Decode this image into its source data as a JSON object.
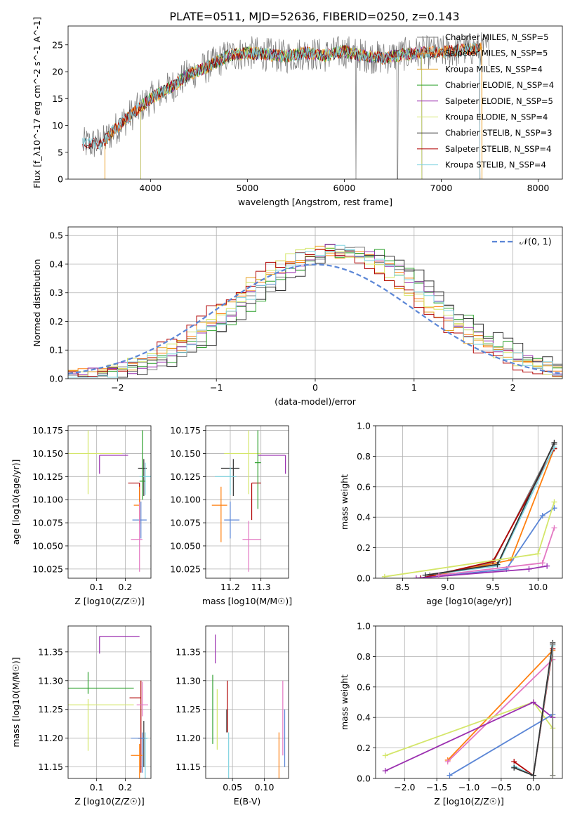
{
  "figure_title": "PLATE=0511, MJD=52636, FIBERID=0250, z=0.143",
  "colors": {
    "chabrier_miles": "#7f7f7f",
    "salpeter_miles": "#ff7f0e",
    "kroupa_miles": "#e6a020",
    "chabrier_elodie": "#2ca02c",
    "salpeter_elodie": "#9b30b0",
    "kroupa_elodie": "#d4e66a",
    "chabrier_stelib": "#333333",
    "salpeter_stelib": "#b00000",
    "kroupa_stelib": "#7fd3e0",
    "gauss": "#5b86d6",
    "pink": "#e377c2",
    "blue": "#5b86d6"
  },
  "chart_data": [
    {
      "id": "spectrum",
      "type": "line",
      "xlabel": "wavelength [Angstrom, rest frame]",
      "ylabel": "Flux [f_λ10^-17 erg cm^-2 s^-1 A^-1]",
      "xlim": [
        3150,
        8250
      ],
      "ylim": [
        0,
        28.5
      ],
      "xticks": [
        4000,
        5000,
        6000,
        7000,
        8000
      ],
      "yticks": [
        0,
        5,
        10,
        15,
        20,
        25
      ],
      "grid": false,
      "legend_position": "upper right",
      "continuum": {
        "x": [
          3300,
          3500,
          3700,
          3900,
          4000,
          4200,
          4400,
          4600,
          4800,
          5000,
          5200,
          5400,
          5600,
          5800,
          6000,
          6200,
          6400,
          6600,
          6800,
          7000,
          7200,
          7400
        ],
        "y": [
          6.5,
          6.7,
          10.5,
          13.5,
          15.0,
          17.0,
          19.5,
          21.0,
          23.0,
          23.5,
          23.2,
          22.8,
          23.5,
          23.0,
          23.8,
          23.0,
          22.5,
          23.2,
          23.5,
          23.6,
          24.0,
          24.3
        ]
      },
      "series": [
        {
          "name": "Chabrier MILES, N_SSP=5",
          "color_key": "chabrier_miles",
          "x_start": 3300,
          "x_end": 7500,
          "drop_at": [
            6120,
            6550
          ]
        },
        {
          "name": "Salpeter MILES, N_SSP=5",
          "color_key": "salpeter_miles",
          "x_start": 3530,
          "x_end": 7420
        },
        {
          "name": "Kroupa MILES, N_SSP=4",
          "color_key": "kroupa_miles",
          "x_start": 3530,
          "x_end": 7420
        },
        {
          "name": "Chabrier ELODIE, N_SSP=4",
          "color_key": "chabrier_elodie",
          "x_start": 3900,
          "x_end": 6800
        },
        {
          "name": "Salpeter ELODIE, N_SSP=5",
          "color_key": "salpeter_elodie",
          "x_start": 3900,
          "x_end": 6800
        },
        {
          "name": "Kroupa ELODIE, N_SSP=4",
          "color_key": "kroupa_elodie",
          "x_start": 3900,
          "x_end": 6800
        },
        {
          "name": "Chabrier STELIB, N_SSP=3",
          "color_key": "chabrier_stelib",
          "x_start": 3300,
          "x_end": 7400
        },
        {
          "name": "Salpeter STELIB, N_SSP=4",
          "color_key": "salpeter_stelib",
          "x_start": 3300,
          "x_end": 7400
        },
        {
          "name": "Kroupa STELIB, N_SSP=4",
          "color_key": "kroupa_stelib",
          "x_start": 3300,
          "x_end": 7400
        }
      ]
    },
    {
      "id": "residuals",
      "type": "line",
      "xlabel": "(data-model)/error",
      "ylabel": "Normed distribution",
      "xlim": [
        -2.5,
        2.5
      ],
      "ylim": [
        0,
        0.53
      ],
      "xticks": [
        -2,
        -1,
        0,
        1,
        2
      ],
      "yticks": [
        0.0,
        0.1,
        0.2,
        0.3,
        0.4,
        0.5
      ],
      "grid": true,
      "legend_position": "upper right",
      "gauss_label": "𝒩(0, 1)",
      "bin_width": 0.1,
      "hist_offsets": [
        0.3,
        0.2,
        0.1,
        0.35,
        0.25,
        0.15,
        0.4,
        0.05,
        0.22
      ],
      "hist_colors": [
        "chabrier_miles",
        "salpeter_miles",
        "kroupa_miles",
        "chabrier_elodie",
        "salpeter_elodie",
        "kroupa_elodie",
        "chabrier_stelib",
        "salpeter_stelib",
        "kroupa_stelib"
      ]
    },
    {
      "id": "age_vs_Z",
      "type": "scatter",
      "xlabel": "Z [log10(Z/Z☉)]",
      "ylabel": "age [log10(age/yr)]",
      "xlim": [
        0.0,
        0.29
      ],
      "ylim": [
        10.015,
        10.18
      ],
      "xticks": [
        0.1,
        0.2
      ],
      "yticks": [
        10.025,
        10.05,
        10.075,
        10.1,
        10.125,
        10.15,
        10.175
      ],
      "grid": true,
      "points": [
        {
          "x": 0.07,
          "y": 10.15,
          "xerr": [
            0.07,
            0.12
          ],
          "yerr": [
            0.044,
            0.025
          ],
          "color_key": "kroupa_elodie"
        },
        {
          "x": 0.11,
          "y": 10.148,
          "xerr": [
            0,
            0.1
          ],
          "yerr": [
            0.02,
            0
          ],
          "color_key": "salpeter_elodie"
        },
        {
          "x": 0.25,
          "y": 10.118,
          "xerr": [
            0.04,
            0
          ],
          "yerr": [
            0.02,
            0
          ],
          "color_key": "salpeter_stelib"
        },
        {
          "x": 0.265,
          "y": 10.134,
          "xerr": [
            0.02,
            0.01
          ],
          "yerr": [
            0.03,
            0.01
          ],
          "color_key": "chabrier_stelib"
        },
        {
          "x": 0.27,
          "y": 10.125,
          "xerr": [
            0.02,
            0.02
          ],
          "yerr": [
            0.02,
            0.015
          ],
          "color_key": "kroupa_stelib"
        },
        {
          "x": 0.26,
          "y": 10.12,
          "xerr": [
            0.01,
            0.01
          ],
          "yerr": [
            0.02,
            0.055
          ],
          "color_key": "chabrier_elodie"
        },
        {
          "x": 0.25,
          "y": 10.094,
          "xerr": [
            0.02,
            0
          ],
          "yerr": [
            0.02,
            0.02
          ],
          "color_key": "salpeter_miles"
        },
        {
          "x": 0.255,
          "y": 10.078,
          "xerr": [
            0.03,
            0.02
          ],
          "yerr": [
            0.02,
            0.02
          ],
          "color_key": "blue"
        },
        {
          "x": 0.25,
          "y": 10.057,
          "xerr": [
            0.03,
            0.01
          ],
          "yerr": [
            0.035,
            0.04
          ],
          "color_key": "pink"
        }
      ]
    },
    {
      "id": "age_vs_mass",
      "type": "scatter",
      "xlabel": "mass [log10(M/M☉)]",
      "ylabel": "",
      "xlim": [
        11.12,
        11.39
      ],
      "ylim": [
        10.015,
        10.18
      ],
      "xticks": [
        11.2,
        11.3
      ],
      "yticks": [
        10.025,
        10.05,
        10.075,
        10.1,
        10.125,
        10.15,
        10.175
      ],
      "grid": true,
      "points": [
        {
          "x": 11.26,
          "y": 10.15,
          "xerr": [
            0.08,
            0.04
          ],
          "yerr": [
            0.044,
            0.025
          ],
          "color_key": "kroupa_elodie"
        },
        {
          "x": 11.38,
          "y": 10.148,
          "xerr": [
            0.09,
            0
          ],
          "yerr": [
            0.02,
            0
          ],
          "color_key": "salpeter_elodie"
        },
        {
          "x": 11.27,
          "y": 10.118,
          "xerr": [
            0,
            0.03
          ],
          "yerr": [
            0.04,
            0
          ],
          "color_key": "salpeter_stelib"
        },
        {
          "x": 11.21,
          "y": 10.134,
          "xerr": [
            0.04,
            0.02
          ],
          "yerr": [
            0.03,
            0.01
          ],
          "color_key": "chabrier_stelib"
        },
        {
          "x": 11.2,
          "y": 10.125,
          "xerr": [
            0.05,
            0.02
          ],
          "yerr": [
            0.02,
            0.01
          ],
          "color_key": "kroupa_stelib"
        },
        {
          "x": 11.29,
          "y": 10.14,
          "xerr": [
            0.01,
            0.01
          ],
          "yerr": [
            0.05,
            0.035
          ],
          "color_key": "chabrier_elodie"
        },
        {
          "x": 11.17,
          "y": 10.094,
          "xerr": [
            0.03,
            0.02
          ],
          "yerr": [
            0.04,
            0.02
          ],
          "color_key": "salpeter_miles"
        },
        {
          "x": 11.2,
          "y": 10.078,
          "xerr": [
            0.02,
            0.03
          ],
          "yerr": [
            0.02,
            0.02
          ],
          "color_key": "blue"
        },
        {
          "x": 11.26,
          "y": 10.057,
          "xerr": [
            0.02,
            0.04
          ],
          "yerr": [
            0.035,
            0.02
          ],
          "color_key": "pink"
        }
      ]
    },
    {
      "id": "weight_vs_age",
      "type": "line",
      "xlabel": "age  [log10(age/yr)]",
      "ylabel": "mass weight",
      "xlim": [
        8.2,
        10.27
      ],
      "ylim": [
        0,
        1.0
      ],
      "xticks": [
        8.5,
        9.0,
        9.5,
        10.0
      ],
      "yticks": [
        0.0,
        0.2,
        0.4,
        0.6,
        0.8,
        1.0
      ],
      "grid": true,
      "series": [
        {
          "color_key": "chabrier_miles",
          "x": [
            8.8,
            9.5,
            10.18
          ],
          "y": [
            0.02,
            0.1,
            0.88
          ]
        },
        {
          "color_key": "salpeter_miles",
          "x": [
            8.7,
            9.7,
            10.18
          ],
          "y": [
            0.0,
            0.12,
            0.85
          ]
        },
        {
          "color_key": "blue",
          "x": [
            8.7,
            9.65,
            10.05,
            10.18
          ],
          "y": [
            0.0,
            0.06,
            0.41,
            0.46
          ]
        },
        {
          "color_key": "salpeter_stelib",
          "x": [
            8.7,
            9.5,
            10.18
          ],
          "y": [
            0.0,
            0.11,
            0.85
          ]
        },
        {
          "color_key": "kroupa_stelib",
          "x": [
            8.75,
            9.55,
            10.18
          ],
          "y": [
            0.02,
            0.08,
            0.86
          ]
        },
        {
          "color_key": "chabrier_stelib",
          "x": [
            8.75,
            9.55,
            10.18
          ],
          "y": [
            0.02,
            0.09,
            0.89
          ]
        },
        {
          "color_key": "salpeter_elodie",
          "x": [
            8.65,
            9.9,
            10.1
          ],
          "y": [
            0.0,
            0.06,
            0.08
          ]
        },
        {
          "color_key": "kroupa_elodie",
          "x": [
            8.3,
            10.0,
            10.18
          ],
          "y": [
            0.01,
            0.16,
            0.5
          ]
        },
        {
          "color_key": "pink",
          "x": [
            8.9,
            10.05,
            10.18
          ],
          "y": [
            0.02,
            0.1,
            0.33
          ]
        }
      ]
    },
    {
      "id": "mass_vs_Z",
      "type": "scatter",
      "xlabel": "Z [log10(Z/Z☉)]",
      "ylabel": "mass [log10(M/M☉)]",
      "xlim": [
        0.0,
        0.29
      ],
      "ylim": [
        11.13,
        11.395
      ],
      "xticks": [
        0.1,
        0.2
      ],
      "yticks": [
        11.15,
        11.2,
        11.25,
        11.3,
        11.35
      ],
      "grid": true,
      "points": [
        {
          "x": 0.11,
          "y": 11.377,
          "xerr": [
            0,
            0.14
          ],
          "yerr": [
            0.03,
            0
          ],
          "color_key": "salpeter_elodie"
        },
        {
          "x": 0.07,
          "y": 11.287,
          "xerr": [
            0.07,
            0.16
          ],
          "yerr": [
            0.01,
            0.028
          ],
          "color_key": "chabrier_elodie"
        },
        {
          "x": 0.07,
          "y": 11.258,
          "xerr": [
            0.07,
            0.16
          ],
          "yerr": [
            0.08,
            0.01
          ],
          "color_key": "kroupa_elodie"
        },
        {
          "x": 0.255,
          "y": 11.27,
          "xerr": [
            0.04,
            0
          ],
          "yerr": [
            0.13,
            0.03
          ],
          "color_key": "salpeter_stelib"
        },
        {
          "x": 0.265,
          "y": 11.2,
          "xerr": [
            0.02,
            0.01
          ],
          "yerr": [
            0.05,
            0.03
          ],
          "color_key": "chabrier_stelib"
        },
        {
          "x": 0.27,
          "y": 11.2,
          "xerr": [
            0.01,
            0.01
          ],
          "yerr": [
            0.07,
            0.01
          ],
          "color_key": "kroupa_stelib"
        },
        {
          "x": 0.26,
          "y": 11.2,
          "xerr": [
            0.04,
            0.01
          ],
          "yerr": [
            0.06,
            0.01
          ],
          "color_key": "blue"
        },
        {
          "x": 0.25,
          "y": 11.17,
          "xerr": [
            0.03,
            0.01
          ],
          "yerr": [
            0.04,
            0.02
          ],
          "color_key": "salpeter_miles"
        },
        {
          "x": 0.26,
          "y": 11.258,
          "xerr": [
            0.02,
            0.02
          ],
          "yerr": [
            0.02,
            0.04
          ],
          "color_key": "pink"
        }
      ]
    },
    {
      "id": "mass_vs_EBV",
      "type": "scatter",
      "xlabel": "E(B-V)",
      "ylabel": "",
      "xlim": [
        0.008,
        0.138
      ],
      "ylim": [
        11.13,
        11.395
      ],
      "xticks": [
        0.05,
        0.1
      ],
      "yticks": [
        11.15,
        11.2,
        11.25,
        11.3,
        11.35
      ],
      "grid": true,
      "vlines": [
        {
          "x": 0.019,
          "ymin": 11.19,
          "ymax": 11.31,
          "color_key": "chabrier_elodie"
        },
        {
          "x": 0.023,
          "ymin": 11.33,
          "ymax": 11.38,
          "color_key": "salpeter_elodie"
        },
        {
          "x": 0.026,
          "ymin": 11.18,
          "ymax": 11.285,
          "color_key": "kroupa_elodie"
        },
        {
          "x": 0.041,
          "ymin": 11.21,
          "ymax": 11.25,
          "color_key": "chabrier_stelib"
        },
        {
          "x": 0.042,
          "ymin": 11.21,
          "ymax": 11.3,
          "color_key": "salpeter_stelib"
        },
        {
          "x": 0.044,
          "ymin": 11.13,
          "ymax": 11.21,
          "color_key": "kroupa_stelib"
        },
        {
          "x": 0.123,
          "ymin": 11.13,
          "ymax": 11.21,
          "color_key": "salpeter_miles"
        },
        {
          "x": 0.129,
          "ymin": 11.17,
          "ymax": 11.3,
          "color_key": "pink"
        },
        {
          "x": 0.132,
          "ymin": 11.15,
          "ymax": 11.25,
          "color_key": "blue"
        }
      ]
    },
    {
      "id": "weight_vs_Z",
      "type": "line",
      "xlabel": "Z [log10(Z/Z☉)]",
      "ylabel": "mass weight",
      "xlim": [
        -2.45,
        0.45
      ],
      "ylim": [
        0,
        1.0
      ],
      "xticks": [
        -2.0,
        -1.5,
        -1.0,
        -0.5,
        0.0
      ],
      "yticks": [
        0.0,
        0.2,
        0.4,
        0.6,
        0.8,
        1.0
      ],
      "grid": true,
      "series": [
        {
          "color_key": "salpeter_miles",
          "x": [
            -1.33,
            0.3
          ],
          "y": [
            0.12,
            0.84
          ]
        },
        {
          "color_key": "pink",
          "x": [
            -1.33,
            0.3
          ],
          "y": [
            0.11,
            0.78
          ]
        },
        {
          "color_key": "kroupa_elodie",
          "x": [
            -2.3,
            0.0,
            0.3,
            0.3
          ],
          "y": [
            0.15,
            0.5,
            0.33,
            0.02
          ]
        },
        {
          "color_key": "salpeter_elodie",
          "x": [
            -2.3,
            0.0,
            0.3
          ],
          "y": [
            0.05,
            0.5,
            0.4
          ]
        },
        {
          "color_key": "blue",
          "x": [
            -1.3,
            0.3
          ],
          "y": [
            0.02,
            0.42
          ]
        },
        {
          "color_key": "salpeter_stelib",
          "x": [
            -0.3,
            0.0,
            0.3
          ],
          "y": [
            0.11,
            0.02,
            0.85
          ]
        },
        {
          "color_key": "kroupa_stelib",
          "x": [
            -0.3,
            0.0,
            0.3
          ],
          "y": [
            0.08,
            0.02,
            0.87
          ]
        },
        {
          "color_key": "chabrier_stelib",
          "x": [
            -0.3,
            0.0,
            0.3
          ],
          "y": [
            0.07,
            0.02,
            0.89
          ]
        },
        {
          "color_key": "chabrier_miles",
          "x": [
            0.3,
            0.3
          ],
          "y": [
            0.02,
            0.88
          ]
        }
      ]
    }
  ]
}
